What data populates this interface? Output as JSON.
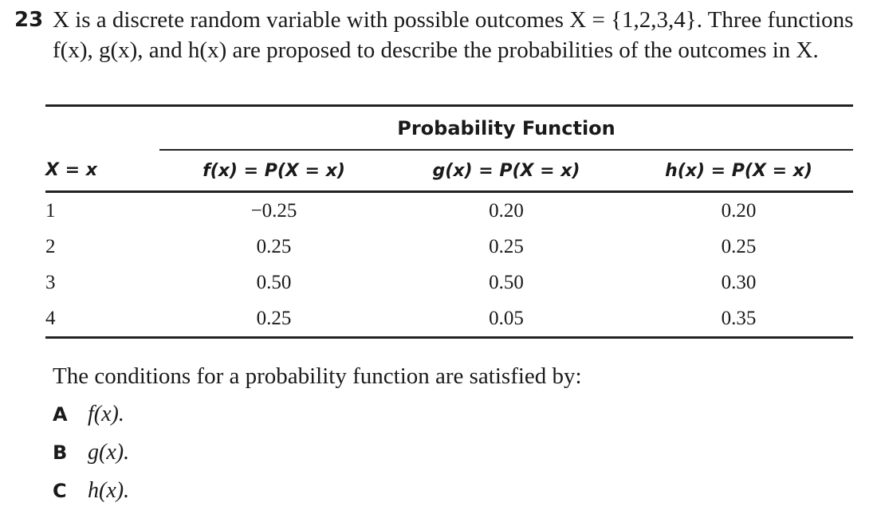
{
  "question": {
    "number": "23",
    "stem": "X is a discrete random variable with possible outcomes X = {1,2,3,4}. Three functions f(x), g(x), and h(x) are proposed to describe the probabilities of the outcomes in X."
  },
  "table": {
    "group_header": "Probability Function",
    "headers": [
      "X = x",
      "f(x) = P(X = x)",
      "g(x) = P(X = x)",
      "h(x) = P(X = x)"
    ],
    "rows": [
      [
        "1",
        "−0.25",
        "0.20",
        "0.20"
      ],
      [
        "2",
        "0.25",
        "0.25",
        "0.25"
      ],
      [
        "3",
        "0.50",
        "0.50",
        "0.30"
      ],
      [
        "4",
        "0.25",
        "0.05",
        "0.35"
      ]
    ]
  },
  "prompt": "The conditions for a probability function are satisfied by:",
  "options": [
    {
      "letter": "A",
      "text": "f(x)."
    },
    {
      "letter": "B",
      "text": "g(x)."
    },
    {
      "letter": "C",
      "text": "h(x)."
    }
  ]
}
